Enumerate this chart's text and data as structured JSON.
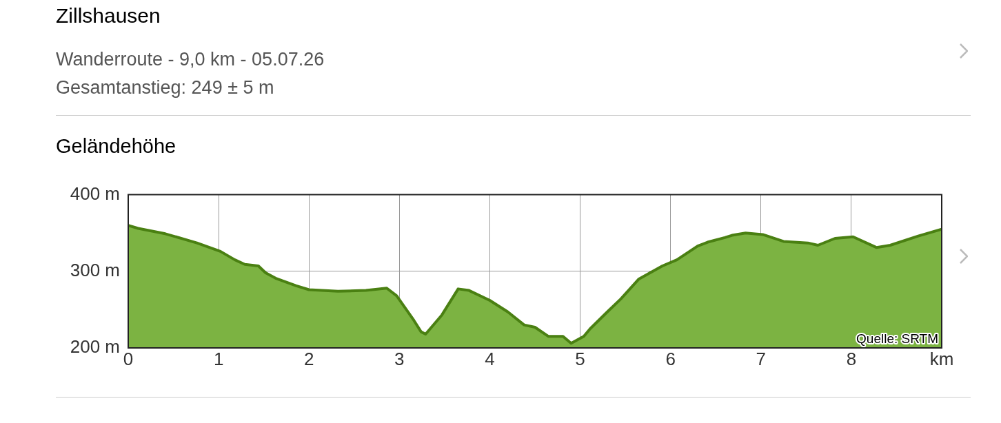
{
  "chart_data": {
    "type": "area",
    "title": "Zillshausen",
    "subtitle": "Wanderroute - 9,0 km - 05.07.26\nGesamtanstieg: 249 ± 5 m",
    "ylabel": "Geländehöhe",
    "annotations": [
      "Quelle: SRTM"
    ],
    "x": [
      0,
      0.11,
      0.41,
      0.76,
      1.02,
      1.18,
      1.29,
      1.44,
      1.52,
      1.63,
      1.86,
      2.0,
      2.32,
      2.63,
      2.86,
      2.97,
      3.16,
      3.24,
      3.29,
      3.47,
      3.65,
      3.77,
      4.0,
      4.2,
      4.38,
      4.5,
      4.65,
      4.81,
      4.9,
      5.04,
      5.11,
      5.3,
      5.45,
      5.65,
      5.91,
      6.07,
      6.3,
      6.41,
      6.6,
      6.68,
      6.83,
      7.02,
      7.25,
      7.52,
      7.63,
      7.82,
      8.02,
      8.28,
      8.43,
      8.74,
      9.0
    ],
    "series": [
      {
        "color": "#4a8012",
        "values": [
          360,
          356,
          349,
          337,
          326,
          315,
          309,
          307,
          298,
          291,
          281,
          276,
          274,
          275,
          278,
          268,
          236,
          221,
          218,
          243,
          277,
          275,
          262,
          247,
          230,
          227,
          215,
          215,
          206,
          215,
          225,
          247,
          264,
          290,
          307,
          315,
          333,
          338,
          344,
          347,
          350,
          348,
          339,
          337,
          334,
          343,
          345,
          331,
          334,
          346,
          355
        ]
      }
    ],
    "xlim": [
      0,
      9
    ],
    "xticks": [
      0,
      1,
      2,
      3,
      4,
      5,
      6,
      7,
      8,
      {
        "value": 9,
        "label": "km"
      }
    ],
    "ylim": [
      200,
      400
    ],
    "yticks": [
      {
        "value": 200,
        "label": "200 m"
      },
      {
        "value": 300,
        "label": "300 m"
      },
      {
        "value": 400,
        "label": "400 m"
      }
    ],
    "grid": true
  }
}
